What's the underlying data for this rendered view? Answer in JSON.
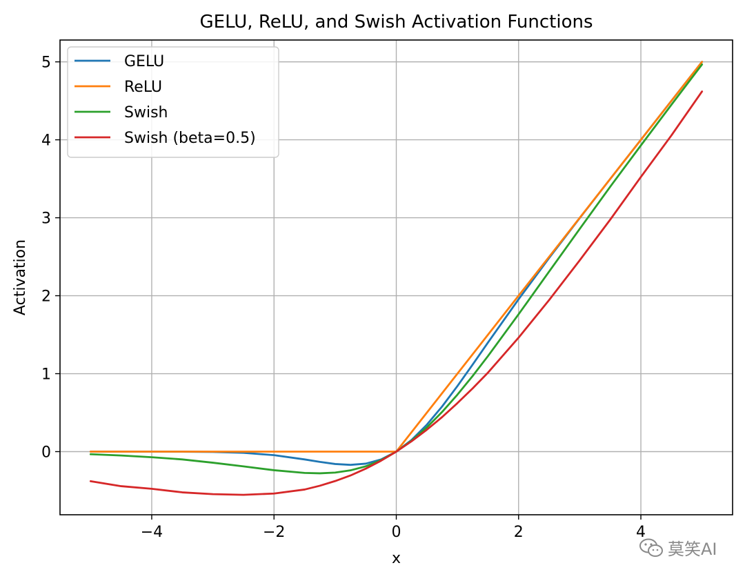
{
  "chart_data": {
    "type": "line",
    "title": "GELU, ReLU, and Swish Activation Functions",
    "xlabel": "x",
    "ylabel": "Activation",
    "xlim": [
      -5.5,
      5.5
    ],
    "ylim": [
      -0.81,
      5.28
    ],
    "x_ticks": [
      -4,
      -2,
      0,
      2,
      4
    ],
    "y_ticks": [
      0,
      1,
      2,
      3,
      4,
      5
    ],
    "x_tick_labels": [
      "−4",
      "−2",
      "0",
      "2",
      "4"
    ],
    "y_tick_labels": [
      "0",
      "1",
      "2",
      "3",
      "4",
      "5"
    ],
    "grid": true,
    "legend_position": "top-left",
    "x": [
      -5,
      -4.5,
      -4,
      -3.5,
      -3,
      -2.5,
      -2,
      -1.5,
      -1.25,
      -1,
      -0.75,
      -0.5,
      -0.25,
      0,
      0.25,
      0.5,
      0.75,
      1,
      1.25,
      1.5,
      2,
      2.5,
      3,
      3.5,
      4,
      4.5,
      5
    ],
    "series": [
      {
        "name": "GELU",
        "color": "#1f77b4",
        "values": [
          0,
          0,
          -0.0001,
          -0.0008,
          -0.004,
          -0.0155,
          -0.0455,
          -0.1002,
          -0.132,
          -0.1588,
          -0.1701,
          -0.1543,
          -0.1003,
          0,
          0.1497,
          0.3457,
          0.5799,
          0.8412,
          1.118,
          1.3998,
          1.9545,
          2.4845,
          2.996,
          3.4992,
          3.9999,
          4.5,
          5
        ]
      },
      {
        "name": "ReLU",
        "color": "#ff7f0e",
        "values": [
          0,
          0,
          0,
          0,
          0,
          0,
          0,
          0,
          0,
          0,
          0,
          0,
          0,
          0,
          0.25,
          0.5,
          0.75,
          1,
          1.25,
          1.5,
          2,
          2.5,
          3,
          3.5,
          4,
          4.5,
          5
        ]
      },
      {
        "name": "Swish",
        "color": "#2ca02c",
        "values": [
          -0.0335,
          -0.0497,
          -0.0719,
          -0.1003,
          -0.1423,
          -0.1896,
          -0.2384,
          -0.2736,
          -0.2783,
          -0.2689,
          -0.2403,
          -0.1888,
          -0.1097,
          0,
          0.1403,
          0.3112,
          0.5097,
          0.7311,
          0.9717,
          1.2264,
          1.7616,
          2.3104,
          2.8577,
          3.3997,
          3.9281,
          4.4503,
          4.9665
        ]
      },
      {
        "name": "Swish (beta=0.5)",
        "color": "#d62728",
        "values": [
          -0.3798,
          -0.4433,
          -0.4768,
          -0.5227,
          -0.5456,
          -0.5544,
          -0.5379,
          -0.4863,
          -0.4377,
          -0.3775,
          -0.3065,
          -0.2188,
          -0.1172,
          0,
          0.1328,
          0.2812,
          0.4435,
          0.6225,
          0.8123,
          1.0137,
          1.4621,
          1.9453,
          2.4542,
          2.9773,
          3.5232,
          4.0567,
          4.6202
        ]
      }
    ]
  },
  "watermark": {
    "text": "莫笑AI",
    "icon": "wechat-icon"
  }
}
